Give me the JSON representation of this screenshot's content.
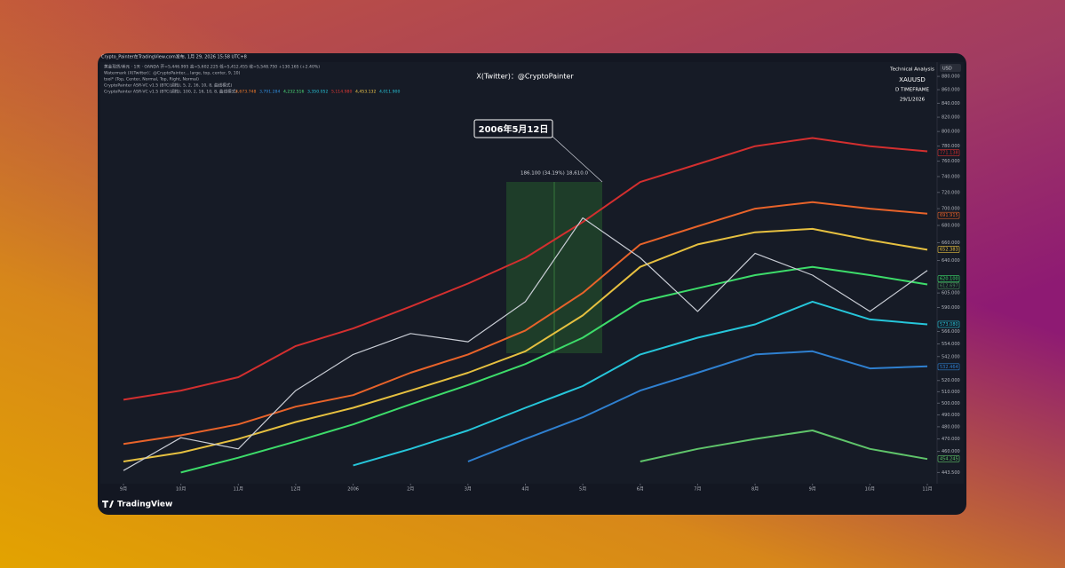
{
  "header": {
    "credit": "Crypto_Painter在TradingView.com发布, 1月 29, 2026 15:58 UTC+8",
    "legend_lines": [
      "黄金现货/美元 · 1天 · OANDA  开=5,446.995 高=5,602.225 低=5,412.455 收=5,548.750 +130.165 (+2.40%)",
      "Watermark (X(Twitter)：@CryptoPainter, , large, top, center, 9, 10)",
      "tool* (Top, Center, Normal, Top, Right, Normal)",
      "CryptoPainter ASR-VC v1.5 (BTC(调档), 5, 2, 16, 10, 8, 曲线模式)",
      "CryptoPainter ASR-VC v1.5 (BTC(调档), 100, 2, 16, 10, 8, 曲线模式)"
    ],
    "indicator_values": [
      {
        "label": "4,673.748",
        "color": "#f57c2b"
      },
      {
        "label": "3,791.284",
        "color": "#2f8fe0"
      },
      {
        "label": "4,232.516",
        "color": "#4ee07a"
      },
      {
        "label": "3,350.052",
        "color": "#26c6da"
      },
      {
        "label": "5,114.980",
        "color": "#e53935"
      },
      {
        "label": "4,453.132",
        "color": "#f2c94c"
      },
      {
        "label": "4,011.900",
        "color": "#26c6da"
      }
    ],
    "watermark": "X(Twitter)：@CryptoPainter",
    "info": [
      "Technical Analysis",
      "XAUUSD",
      "D TIMEFRAME",
      "29/1/2026"
    ],
    "currency": "USD",
    "brand": "TradingView"
  },
  "chart_data": {
    "type": "line",
    "log_scale": true,
    "categories": [
      "9月",
      "10月",
      "11月",
      "12月",
      "2006",
      "2月",
      "3月",
      "4月",
      "5月",
      "6月",
      "7月",
      "8月",
      "9月",
      "10月",
      "11月"
    ],
    "ylim": [
      435,
      902
    ],
    "yticks": [
      {
        "value": 880,
        "label": "880.000"
      },
      {
        "value": 860,
        "label": "860.000"
      },
      {
        "value": 840,
        "label": "840.000"
      },
      {
        "value": 820,
        "label": "820.000"
      },
      {
        "value": 800,
        "label": "800.000"
      },
      {
        "value": 780,
        "label": "780.000"
      },
      {
        "value": 760,
        "label": "760.000"
      },
      {
        "value": 740,
        "label": "740.000"
      },
      {
        "value": 720,
        "label": "720.000"
      },
      {
        "value": 700,
        "label": "700.000"
      },
      {
        "value": 680,
        "label": "680.000"
      },
      {
        "value": 660,
        "label": "660.000"
      },
      {
        "value": 640,
        "label": "640.000"
      },
      {
        "value": 605,
        "label": "605.000"
      },
      {
        "value": 590,
        "label": "590.000"
      },
      {
        "value": 566,
        "label": "566.000"
      },
      {
        "value": 554,
        "label": "554.000"
      },
      {
        "value": 542,
        "label": "542.000"
      },
      {
        "value": 520,
        "label": "520.000"
      },
      {
        "value": 510,
        "label": "510.000"
      },
      {
        "value": 500,
        "label": "500.000"
      },
      {
        "value": 490,
        "label": "490.000"
      },
      {
        "value": 480,
        "label": "480.000"
      },
      {
        "value": 470,
        "label": "470.000"
      },
      {
        "value": 460,
        "label": "460.000"
      },
      {
        "value": 443.5,
        "label": "443.500"
      }
    ],
    "series": [
      {
        "color": "#d32f2f",
        "values": [
          503,
          511,
          523,
          552,
          569,
          591,
          615,
          643,
          684,
          733,
          756,
          780,
          791,
          780,
          773
        ]
      },
      {
        "color": "#e8632a",
        "values": [
          466,
          473,
          482,
          497,
          507,
          527,
          544,
          567,
          605,
          658,
          679,
          700,
          708,
          700,
          694
        ]
      },
      {
        "color": "#e6c040",
        "values": [
          452,
          459,
          470,
          484,
          496,
          511,
          527,
          547,
          582,
          633,
          658,
          672,
          676,
          663,
          652
        ]
      },
      {
        "color": "#3ddc6a",
        "values": [
          null,
          443.5,
          455,
          468,
          482,
          499,
          516,
          535,
          560,
          596,
          610,
          624,
          633,
          624,
          614
        ]
      },
      {
        "color": "#26c6da",
        "values": [
          null,
          null,
          null,
          null,
          449,
          462,
          477,
          496,
          515,
          544,
          560,
          573,
          596,
          578,
          573
        ]
      },
      {
        "color": "#2f80d0",
        "values": [
          null,
          null,
          null,
          null,
          null,
          null,
          452,
          470,
          488,
          511,
          527,
          544,
          547,
          531,
          533
        ]
      },
      {
        "color": "#5fc46a",
        "values": [
          null,
          null,
          null,
          null,
          null,
          null,
          null,
          null,
          null,
          452,
          462,
          470,
          477,
          462,
          454
        ]
      },
      {
        "color": "#c8ccd4",
        "values": [
          445,
          471,
          462,
          511,
          544,
          564,
          556,
          596,
          689,
          643,
          586,
          648,
          624,
          586,
          629
        ]
      }
    ],
    "price_tags": [
      {
        "value": 771.138,
        "label": "771.138",
        "color": "#d32f2f"
      },
      {
        "value": 691.915,
        "label": "691.915",
        "color": "#e8632a"
      },
      {
        "value": 652.383,
        "label": "652.383",
        "color": "#e6c040"
      },
      {
        "value": 620.1,
        "label": "620.100",
        "color": "#3ddc6a"
      },
      {
        "value": 612.697,
        "label": "612.697",
        "color": "#4a8a5a"
      },
      {
        "value": 573.08,
        "label": "573.080",
        "color": "#26c6da"
      },
      {
        "value": 532.464,
        "label": "532.464",
        "color": "#2f80d0"
      },
      {
        "value": 454.245,
        "label": "454.245",
        "color": "#5fc46a"
      }
    ],
    "annotations": [
      "2006年5月12日",
      "186.100 (34.19%) 18,610.0"
    ]
  }
}
